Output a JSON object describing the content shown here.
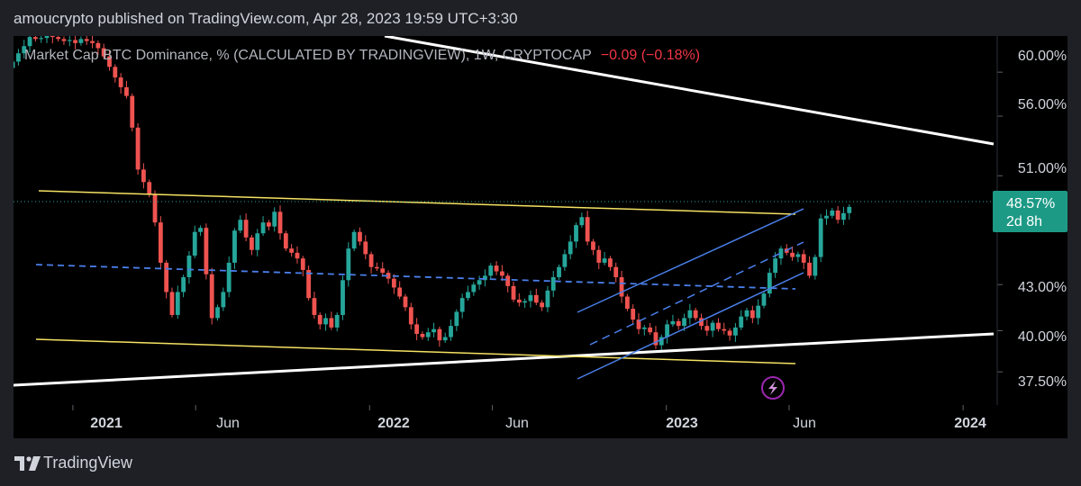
{
  "header": {
    "publisher": "amoucrypto published on TradingView.com, Apr 28, 2023 19:59 UTC+3:30"
  },
  "legend": {
    "symbol": "Market Cap BTC Dominance, % (CALCULATED BY TRADINGVIEW), 1W, CRYPTOCAP",
    "change": "−0.09 (−0.18%)"
  },
  "footer": {
    "brand": "TradingView"
  },
  "colors": {
    "up": "#26a69a",
    "down": "#ef5350",
    "yellow": "#f5e263",
    "blue": "#4a7fea",
    "white": "#ffffff",
    "badge": "#1d9a86",
    "bolt": "#9c27b0"
  },
  "chart_data": {
    "type": "candlestick",
    "title": "Market Cap BTC Dominance, % (CALCULATED BY TRADINGVIEW), 1W, CRYPTOCAP",
    "timeframe": "1W",
    "x_axis": {
      "range": [
        "2020-10-20",
        "2024-02-12"
      ],
      "tick_labels": [
        "2021",
        "Jun",
        "2022",
        "Jun",
        "2023",
        "Jun",
        "2024"
      ],
      "ticks": [
        "2021-01-01",
        "2021-06-01",
        "2022-01-01",
        "2022-06-01",
        "2023-01-01",
        "2023-06-01",
        "2024-01-01"
      ]
    },
    "y_axis": {
      "scale": "log",
      "unit": "%",
      "range": [
        35.6,
        63.5
      ],
      "tick_labels": [
        "60.00%",
        "56.00%",
        "51.00%",
        "43.00%",
        "40.00%",
        "37.50%"
      ],
      "ticks": [
        60,
        56,
        51,
        43,
        40,
        37.5
      ]
    },
    "last_price": {
      "value": 48.57,
      "label": "48.57%",
      "countdown": "2d 8h"
    },
    "candles_weekly_close": [
      61.0,
      61.8,
      62.5,
      63.4,
      63.2,
      63.3,
      63.5,
      63.4,
      63.2,
      63.0,
      63.1,
      62.8,
      63.2,
      63.0,
      62.8,
      62.3,
      61.5,
      60.5,
      59.5,
      58.6,
      57.8,
      55.0,
      51.5,
      50.5,
      49.5,
      47.4,
      44.5,
      42.5,
      41.0,
      42.5,
      43.5,
      45.0,
      46.7,
      47.0,
      43.7,
      40.8,
      41.5,
      42.5,
      44.5,
      46.8,
      47.6,
      46.3,
      45.4,
      46.6,
      47.4,
      47.1,
      48.2,
      46.6,
      45.5,
      45.2,
      44.8,
      44.0,
      42.1,
      41.0,
      40.4,
      40.8,
      40.2,
      41.0,
      43.3,
      45.5,
      46.7,
      46.0,
      45.1,
      44.2,
      44.1,
      43.8,
      43.4,
      42.8,
      42.2,
      41.5,
      40.4,
      39.8,
      39.6,
      39.9,
      40.1,
      39.4,
      39.6,
      40.3,
      41.2,
      42.1,
      42.5,
      43.0,
      43.3,
      43.6,
      44.3,
      43.9,
      43.6,
      42.9,
      42.0,
      41.8,
      41.9,
      42.3,
      41.8,
      41.5,
      42.6,
      43.5,
      44.2,
      45.1,
      46.0,
      47.2,
      47.8,
      46.0,
      45.4,
      44.5,
      44.8,
      44.2,
      43.5,
      42.2,
      41.4,
      40.7,
      40.1,
      40.2,
      39.9,
      39.1,
      39.6,
      40.4,
      40.6,
      40.3,
      40.8,
      41.3,
      40.8,
      40.3,
      40.0,
      40.5,
      40.1,
      40.0,
      39.7,
      40.2,
      40.9,
      41.3,
      40.8,
      41.6,
      42.4,
      43.8,
      44.8,
      45.5,
      45.2,
      44.9,
      45.1,
      44.5,
      43.6,
      44.9,
      47.7,
      47.9,
      48.3,
      47.6,
      48.1,
      48.57
    ]
  }
}
